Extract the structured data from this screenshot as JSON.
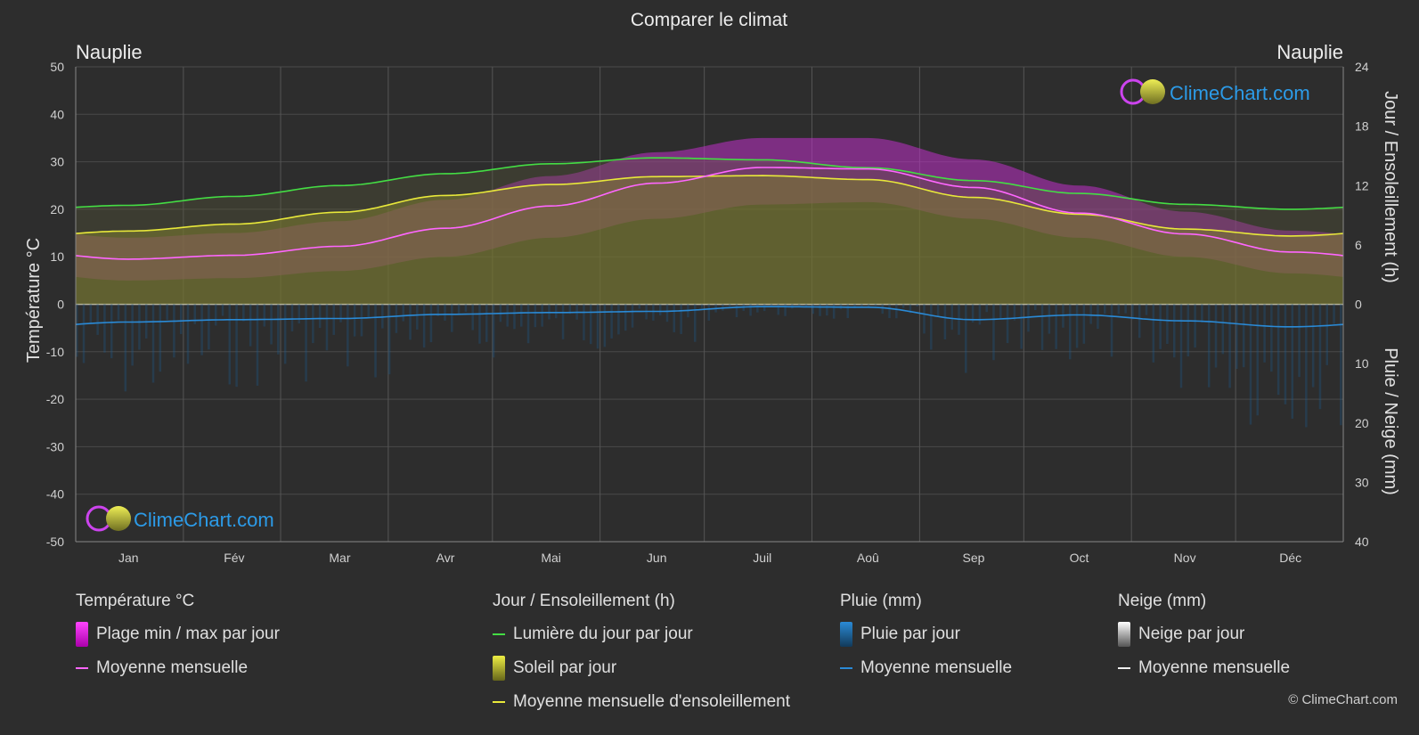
{
  "header": {
    "title": "Comparer le climat",
    "location_left": "Nauplie",
    "location_right": "Nauplie"
  },
  "watermark": {
    "text": "ClimeChart.com"
  },
  "chart_data": {
    "type": "area",
    "months": [
      "Jan",
      "Fév",
      "Mar",
      "Avr",
      "Mai",
      "Jun",
      "Juil",
      "Aoû",
      "Sep",
      "Oct",
      "Nov",
      "Déc"
    ],
    "y_left": {
      "label": "Température °C",
      "range": [
        -50,
        50
      ],
      "ticks": [
        50,
        40,
        30,
        20,
        10,
        0,
        -10,
        -20,
        -30,
        -40,
        -50
      ]
    },
    "y_right_top": {
      "label": "Jour / Ensoleillement (h)",
      "range": [
        0,
        24
      ],
      "ticks": [
        24,
        18,
        12,
        6,
        0
      ]
    },
    "y_right_bottom": {
      "label": "Pluie / Neige (mm)",
      "range": [
        0,
        40
      ],
      "ticks": [
        10,
        20,
        30,
        40
      ]
    },
    "series": [
      {
        "name": "Lumière du jour par jour",
        "color": "#44dd44",
        "values": [
          10.0,
          10.9,
          12.0,
          13.2,
          14.2,
          14.8,
          14.6,
          13.8,
          12.5,
          11.2,
          10.1,
          9.6
        ]
      },
      {
        "name": "Moyenne mensuelle d'ensoleillement",
        "color": "#e8e83a",
        "values": [
          7.4,
          8.1,
          9.3,
          11.0,
          12.1,
          12.9,
          13.0,
          12.6,
          10.8,
          9.1,
          7.6,
          6.9
        ]
      },
      {
        "name": "Moyenne mensuelle",
        "color": "#ff66ff",
        "unit": "°C",
        "values": [
          9.5,
          10.3,
          12.2,
          16.0,
          20.7,
          25.5,
          28.8,
          28.5,
          24.6,
          19.2,
          14.8,
          11.0
        ]
      },
      {
        "name": "Moyenne mensuelle",
        "color": "#2a8ad6",
        "unit": "mm",
        "values": [
          3.0,
          2.6,
          2.4,
          1.7,
          1.4,
          1.2,
          0.4,
          0.5,
          2.6,
          1.8,
          2.8,
          3.8
        ]
      }
    ],
    "temp_range_daily": {
      "min": [
        5,
        5.5,
        7,
        10,
        14,
        18,
        21,
        21.5,
        18,
        14,
        10,
        6.5
      ],
      "max": [
        14,
        15,
        17.5,
        22,
        27,
        32,
        35,
        35,
        30.5,
        25,
        19.5,
        15.5
      ]
    }
  },
  "legend": {
    "temperature": {
      "title": "Température °C",
      "items": [
        "Plage min / max par jour",
        "Moyenne mensuelle"
      ]
    },
    "sun": {
      "title": "Jour / Ensoleillement (h)",
      "items": [
        "Lumière du jour par jour",
        "Soleil par jour",
        "Moyenne mensuelle d'ensoleillement"
      ]
    },
    "rain": {
      "title": "Pluie (mm)",
      "items": [
        "Pluie par jour",
        "Moyenne mensuelle"
      ]
    },
    "snow": {
      "title": "Neige (mm)",
      "items": [
        "Neige par jour",
        "Moyenne mensuelle"
      ]
    }
  },
  "footer": {
    "copyright": "© ClimeChart.com"
  }
}
